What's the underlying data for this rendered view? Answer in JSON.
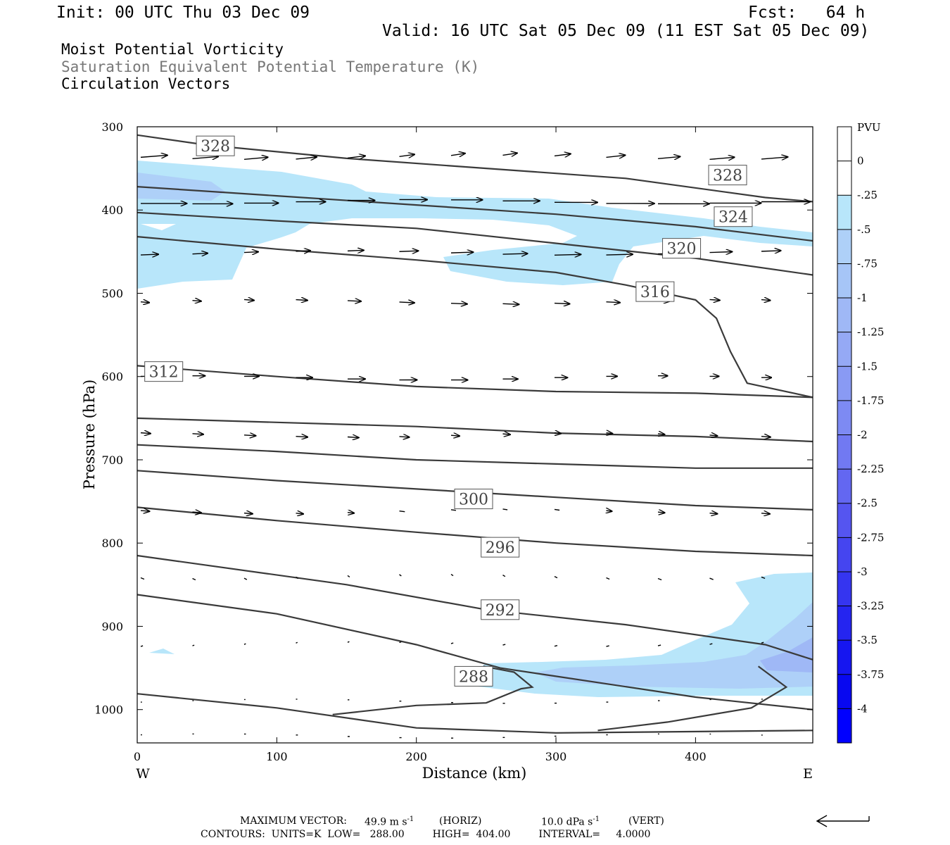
{
  "header": {
    "init": "Init: 00 UTC Thu 03 Dec 09",
    "fcst": "Fcst:   64 h",
    "valid": "Valid: 16 UTC Sat 05 Dec 09 (11 EST Sat 05 Dec 09)",
    "field1": "Moist Potential Vorticity",
    "field2": "Saturation Equivalent Potential Temperature (K)",
    "field3": "Circulation Vectors"
  },
  "footer": {
    "max_vector_label": "MAXIMUM VECTOR:",
    "max_vector_horiz": "49.9 m s",
    "horiz_tag": "(HORIZ)",
    "max_vector_vert": "10.0 dPa s",
    "vert_tag": "(VERT)",
    "exponent": "-1",
    "contours_line": "CONTOURS:  UNITS=K  LOW=   288.00         HIGH=  404.00         INTERVAL=     4.0000"
  },
  "colors": {
    "shade1": "#b8e6fa",
    "shade2": "#aed0f8",
    "shade3": "#9fb8f6",
    "contour": "#3a3a3a"
  },
  "chart_data": {
    "type": "contour",
    "xlabel": "Distance (km)",
    "ylabel": "Pressure (hPa)",
    "xlim": [
      0,
      484
    ],
    "ylim": [
      1040,
      300
    ],
    "x_ticks": [
      0,
      100,
      200,
      300,
      400
    ],
    "y_ticks": [
      300,
      400,
      500,
      600,
      700,
      800,
      900,
      1000
    ],
    "x_end_labels": {
      "left": "W",
      "right": "E"
    },
    "colorbar": {
      "title": "PVU",
      "levels": [
        "0",
        "-.25",
        "-.5",
        "-.75",
        "-1",
        "-1.25",
        "-1.5",
        "-1.75",
        "-2",
        "-2.25",
        "-2.5",
        "-2.75",
        "-3",
        "-3.25",
        "-3.5",
        "-3.75",
        "-4"
      ],
      "colors": [
        "#ffffff",
        "#ffffff",
        "#b8e6fa",
        "#aed0f8",
        "#a6c5f7",
        "#9fb8f6",
        "#95a9f5",
        "#899af4",
        "#7d8af3",
        "#7179f2",
        "#6367f1",
        "#5555f0",
        "#4545f0",
        "#3535f0",
        "#2525f0",
        "#1616f0",
        "#0808f0",
        "#0000ff"
      ]
    },
    "theta_contours": [
      {
        "label": "328",
        "points": [
          [
            0,
            310
          ],
          [
            50,
            322
          ],
          [
            150,
            338
          ],
          [
            250,
            350
          ],
          [
            350,
            362
          ],
          [
            450,
            385
          ],
          [
            484,
            390
          ]
        ]
      },
      {
        "label": "324",
        "points": [
          [
            0,
            372
          ],
          [
            100,
            383
          ],
          [
            200,
            394
          ],
          [
            300,
            405
          ],
          [
            400,
            420
          ],
          [
            484,
            437
          ]
        ]
      },
      {
        "label": "320",
        "points": [
          [
            0,
            403
          ],
          [
            100,
            413
          ],
          [
            200,
            422
          ],
          [
            300,
            440
          ],
          [
            400,
            458
          ],
          [
            484,
            478
          ]
        ]
      },
      {
        "label": "316",
        "points": [
          [
            0,
            432
          ],
          [
            100,
            447
          ],
          [
            200,
            460
          ],
          [
            300,
            475
          ],
          [
            350,
            490
          ],
          [
            400,
            508
          ],
          [
            415,
            530
          ],
          [
            425,
            570
          ],
          [
            437,
            608
          ],
          [
            484,
            625
          ]
        ]
      },
      {
        "label": "312",
        "points": [
          [
            0,
            587
          ],
          [
            100,
            600
          ],
          [
            200,
            612
          ],
          [
            300,
            618
          ],
          [
            400,
            620
          ],
          [
            484,
            625
          ]
        ]
      },
      {
        "label": "",
        "points": [
          [
            0,
            650
          ],
          [
            100,
            655
          ],
          [
            200,
            660
          ],
          [
            300,
            668
          ],
          [
            400,
            672
          ],
          [
            484,
            678
          ]
        ]
      },
      {
        "label": "",
        "points": [
          [
            0,
            682
          ],
          [
            100,
            690
          ],
          [
            200,
            700
          ],
          [
            300,
            705
          ],
          [
            400,
            710
          ],
          [
            484,
            710
          ]
        ]
      },
      {
        "label": "300",
        "points": [
          [
            0,
            713
          ],
          [
            100,
            725
          ],
          [
            200,
            735
          ],
          [
            300,
            745
          ],
          [
            400,
            755
          ],
          [
            484,
            760
          ]
        ]
      },
      {
        "label": "296",
        "points": [
          [
            0,
            757
          ],
          [
            100,
            773
          ],
          [
            200,
            787
          ],
          [
            300,
            800
          ],
          [
            400,
            810
          ],
          [
            484,
            815
          ]
        ]
      },
      {
        "label": "292",
        "points": [
          [
            0,
            815
          ],
          [
            150,
            850
          ],
          [
            250,
            880
          ],
          [
            350,
            898
          ],
          [
            450,
            922
          ],
          [
            484,
            940
          ]
        ]
      },
      {
        "label": "288",
        "points": [
          [
            0,
            862
          ],
          [
            100,
            885
          ],
          [
            200,
            922
          ],
          [
            260,
            950
          ],
          [
            300,
            960
          ],
          [
            400,
            985
          ],
          [
            484,
            1000
          ]
        ]
      }
    ],
    "mpv_shading": [
      {
        "level": "-.25",
        "region": "upper band 340-500 hPa"
      },
      {
        "level": "-.25",
        "region": "lower east 830-990 hPa"
      },
      {
        "level": "-.5",
        "region": "lower east core near 950 hPa"
      }
    ],
    "vector_max": {
      "horizontal": 49.9,
      "vertical": 10.0
    }
  }
}
